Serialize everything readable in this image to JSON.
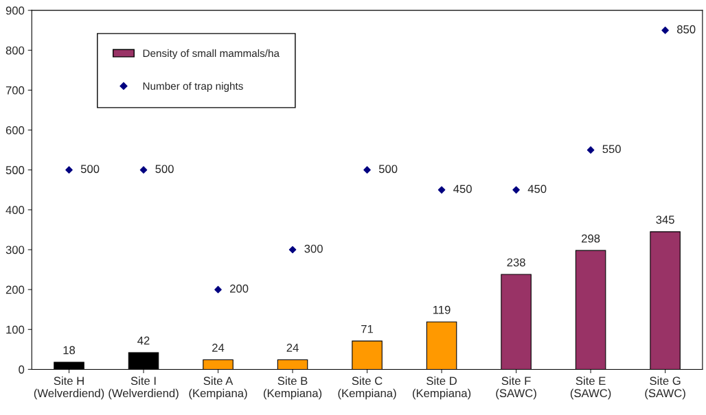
{
  "chart_data": {
    "type": "bar",
    "categories": [
      "Site H\n(Welverdiend)",
      "Site I\n(Welverdiend)",
      "Site A\n(Kempiana)",
      "Site B\n(Kempiana)",
      "Site C\n(Kempiana)",
      "Site D\n(Kempiana)",
      "Site F\n(SAWC)",
      "Site E\n(SAWC)",
      "Site G\n(SAWC)"
    ],
    "series": [
      {
        "name": "Density of small mammals/ha",
        "color": "#993366",
        "colors": [
          "#000000",
          "#000000",
          "#ff9900",
          "#ff9900",
          "#ff9900",
          "#ff9900",
          "#993366",
          "#993366",
          "#993366"
        ],
        "values": [
          18,
          42,
          24,
          24,
          71,
          119,
          238,
          298,
          345
        ]
      },
      {
        "name": "Number of trap nights",
        "type": "scatter",
        "color": "#000080",
        "marker": "diamond",
        "values": [
          500,
          500,
          200,
          300,
          500,
          450,
          450,
          550,
          850
        ]
      }
    ],
    "ylim": [
      0,
      900
    ],
    "yticks": [
      0,
      100,
      200,
      300,
      400,
      500,
      600,
      700,
      800,
      900
    ],
    "grid": false,
    "legend": "top left",
    "data_labels": true
  }
}
